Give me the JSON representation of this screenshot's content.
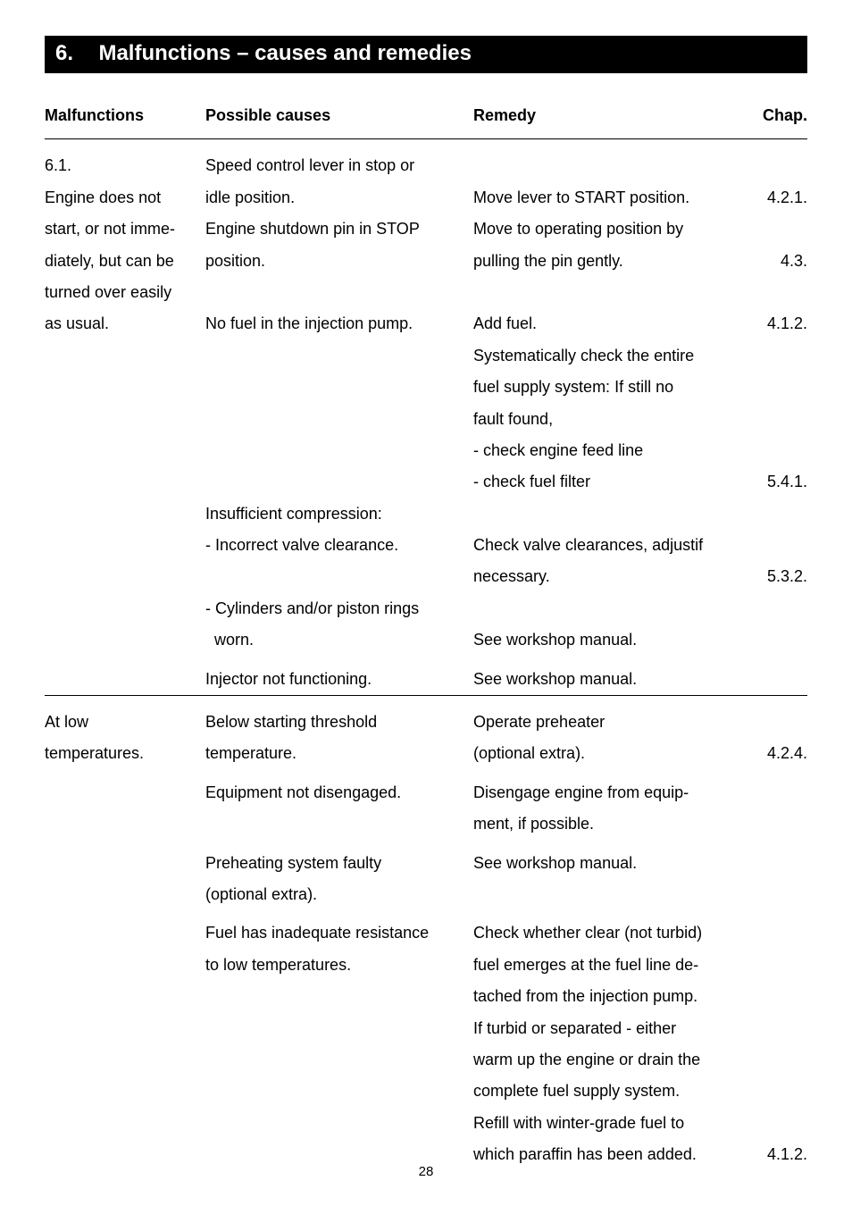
{
  "chapter": {
    "number": "6.",
    "title": "Malfunctions – causes and remedies"
  },
  "headers": {
    "mal": "Malfunctions",
    "cause": "Possible causes",
    "remedy": "Remedy",
    "chap": "Chap."
  },
  "section1": {
    "mal_l1": "6.1.",
    "mal_l2": "Engine does not",
    "mal_l3": "start, or not imme-",
    "mal_l4": "diately, but can be",
    "mal_l5": "turned over easily",
    "mal_l6": "as usual.",
    "c1_l1": "Speed control lever in stop or",
    "c1_l2": "idle position.",
    "c1_l3": "Engine shutdown pin in STOP",
    "c1_l4": "position.",
    "r1_l1": "Move lever to START position.",
    "r1_l2": "Move to operating position by",
    "r1_l3": "pulling the pin gently.",
    "ch1": "4.2.1.",
    "ch2": "4.3.",
    "c2": "No fuel in the injection pump.",
    "r2_l1": "Add fuel.",
    "r2_l2": "Systematically check the entire",
    "r2_l3": "fuel supply system: If still no",
    "r2_l4": "fault found,",
    "r2_l5": "- check engine feed line",
    "r2_l6": "- check fuel filter",
    "ch3": "4.1.2.",
    "ch4": "5.4.1.",
    "c3_l1": "Insufficient compression:",
    "c3_l2": "- Incorrect valve clearance.",
    "r3_l1": "Check valve clearances, adjustif",
    "r3_l2": "necessary.",
    "ch5": "5.3.2.",
    "c4_l1": "- Cylinders and/or piston rings",
    "c4_l2_indent": "  worn.",
    "r4": "See workshop manual.",
    "c5": "Injector not functioning.",
    "r5": "See workshop manual."
  },
  "section2": {
    "mal_l1": "At low",
    "mal_l2": "temperatures.",
    "c1_l1": "Below starting threshold",
    "c1_l2": "temperature.",
    "r1_l1": "Operate preheater",
    "r1_l2": "(optional extra).",
    "ch1": "4.2.4.",
    "c2": "Equipment not disengaged.",
    "r2_l1": "Disengage engine from equip-",
    "r2_l2": "ment, if possible.",
    "c3_l1": "Preheating system faulty",
    "c3_l2": "(optional extra).",
    "r3": "See workshop manual.",
    "c4_l1": "Fuel has inadequate resistance",
    "c4_l2": "to low temperatures.",
    "r4_l1": "Check whether clear (not turbid)",
    "r4_l2": "fuel emerges at the fuel line de-",
    "r4_l3": "tached from the injection pump.",
    "r4_l4": "If turbid or separated - either",
    "r4_l5": "warm up the engine or drain the",
    "r4_l6": "complete fuel supply system.",
    "r4_l7": "Refill with winter-grade fuel to",
    "r4_l8": "which paraffin has been added.",
    "ch2": "4.1.2."
  },
  "page_number": "28"
}
